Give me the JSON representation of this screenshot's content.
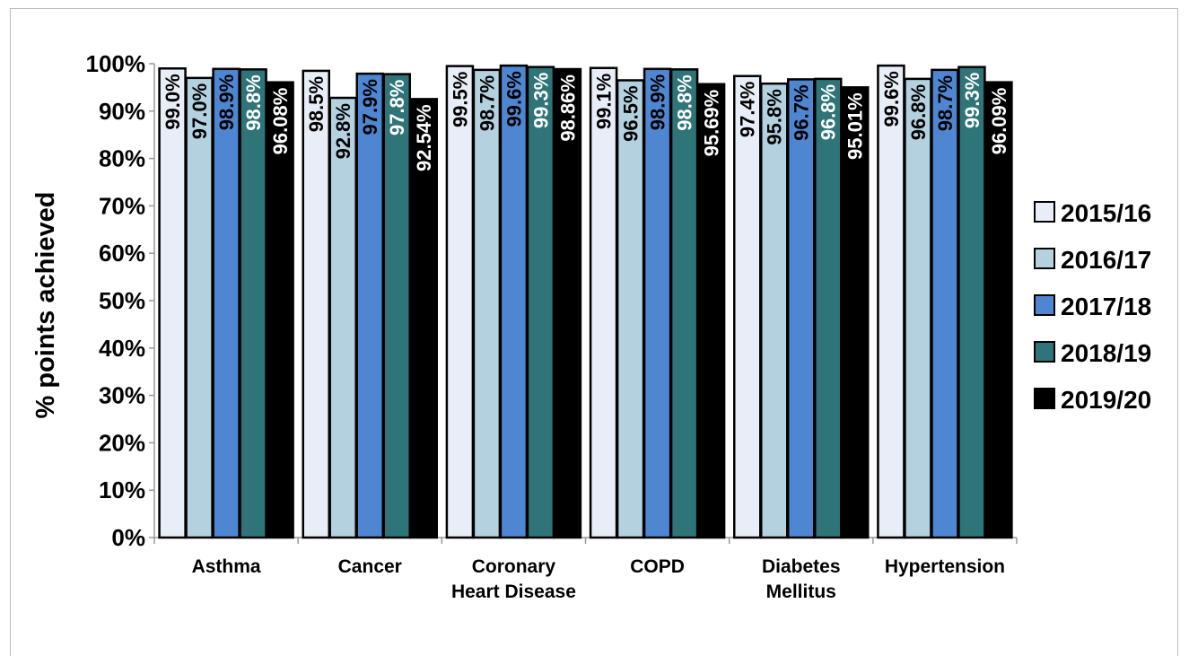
{
  "chart_data": {
    "type": "bar",
    "ylabel": "% points achieved",
    "xlabel": "",
    "ylim": [
      0,
      100
    ],
    "yticks": [
      "0%",
      "10%",
      "20%",
      "30%",
      "40%",
      "50%",
      "60%",
      "70%",
      "80%",
      "90%",
      "100%"
    ],
    "categories": [
      [
        "Asthma"
      ],
      [
        "Cancer"
      ],
      [
        "Coronary",
        "Heart Disease"
      ],
      [
        "COPD"
      ],
      [
        "Diabetes",
        "Mellitus"
      ],
      [
        "Hypertension"
      ]
    ],
    "legend_position": "right",
    "grid": false,
    "series": [
      {
        "name": "2015/16",
        "color": "#e8eef8",
        "label_color": "#000000",
        "values": [
          99.0,
          98.5,
          99.5,
          99.1,
          97.4,
          99.6
        ],
        "labels": [
          "99.0%",
          "98.5%",
          "99.5%",
          "99.1%",
          "97.4%",
          "99.6%"
        ]
      },
      {
        "name": "2016/17",
        "color": "#b4d1e0",
        "label_color": "#000000",
        "values": [
          97.0,
          92.8,
          98.7,
          96.5,
          95.8,
          96.8
        ],
        "labels": [
          "97.0%",
          "92.8%",
          "98.7%",
          "96.5%",
          "95.8%",
          "96.8%"
        ]
      },
      {
        "name": "2017/18",
        "color": "#4f86d2",
        "label_color": "#000000",
        "values": [
          98.9,
          97.9,
          99.6,
          98.9,
          96.7,
          98.7
        ],
        "labels": [
          "98.9%",
          "97.9%",
          "99.6%",
          "98.9%",
          "96.7%",
          "98.7%"
        ]
      },
      {
        "name": "2018/19",
        "color": "#2f7478",
        "label_color": "#ffffff",
        "values": [
          98.8,
          97.8,
          99.3,
          98.8,
          96.8,
          99.3
        ],
        "labels": [
          "98.8%",
          "97.8%",
          "99.3%",
          "98.8%",
          "96.8%",
          "99.3%"
        ]
      },
      {
        "name": "2019/20",
        "color": "#000000",
        "label_color": "#ffffff",
        "values": [
          96.08,
          92.54,
          98.86,
          95.69,
          95.01,
          96.09
        ],
        "labels": [
          "96.08%",
          "92.54%",
          "98.86%",
          "95.69%",
          "95.01%",
          "96.09%"
        ]
      }
    ]
  }
}
